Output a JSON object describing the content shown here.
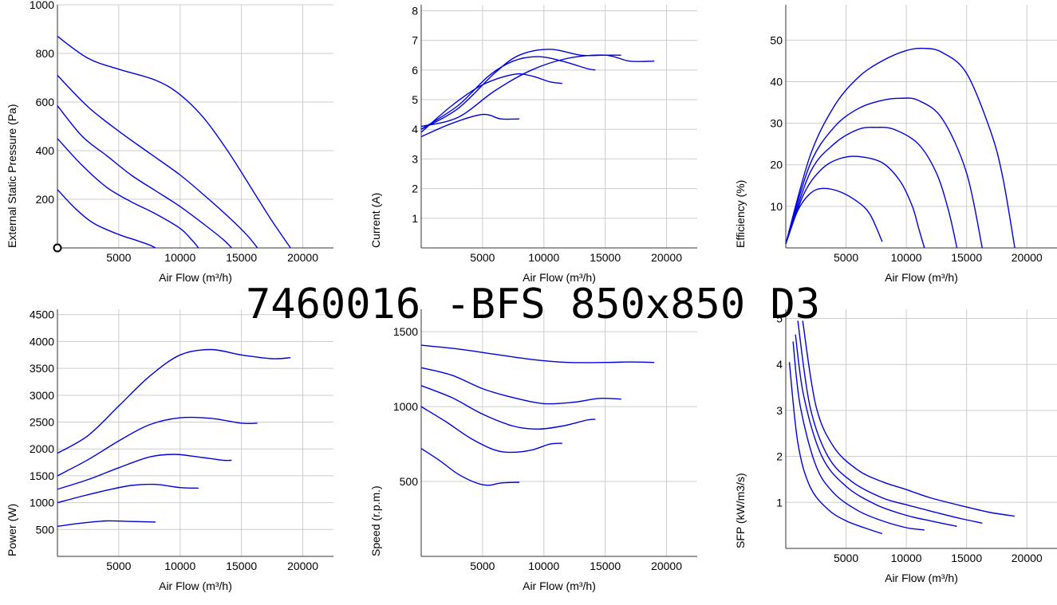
{
  "page_title": "7460016 -BFS 850x850 D3",
  "colors": {
    "curve": "#0000dd",
    "grid": "#cccccc",
    "axis": "#333333",
    "text": "#000000"
  },
  "chart_data": [
    {
      "id": "pressure",
      "type": "line",
      "xlabel": "Air Flow (m³/h)",
      "ylabel": "External Static Pressure (Pa)",
      "xlim": [
        0,
        22500
      ],
      "ylim": [
        0,
        1000
      ],
      "xticks": [
        5000,
        10000,
        15000,
        20000
      ],
      "yticks": [
        200,
        400,
        600,
        800,
        1000
      ],
      "grid": true,
      "marker": {
        "x": 0,
        "y": 0
      },
      "series": [
        {
          "x": [
            0,
            2500,
            5000,
            8000,
            10000,
            12000,
            14000,
            16000,
            17500,
            19000
          ],
          "y": [
            870,
            780,
            735,
            690,
            630,
            530,
            390,
            230,
            110,
            0
          ]
        },
        {
          "x": [
            0,
            2500,
            5000,
            7500,
            10000,
            12000,
            14000,
            15500,
            16300
          ],
          "y": [
            710,
            580,
            480,
            390,
            300,
            215,
            125,
            50,
            0
          ]
        },
        {
          "x": [
            0,
            2000,
            4000,
            6000,
            8000,
            10000,
            12000,
            13500,
            14200
          ],
          "y": [
            585,
            460,
            380,
            300,
            235,
            170,
            95,
            35,
            0
          ]
        },
        {
          "x": [
            0,
            2000,
            4000,
            6000,
            8000,
            10000,
            11000,
            11500
          ],
          "y": [
            450,
            340,
            250,
            190,
            140,
            80,
            30,
            0
          ]
        },
        {
          "x": [
            0,
            1500,
            3000,
            5000,
            6500,
            7500,
            8000
          ],
          "y": [
            240,
            160,
            100,
            55,
            30,
            12,
            0
          ]
        }
      ]
    },
    {
      "id": "current",
      "type": "line",
      "xlabel": "Air Flow (m³/h)",
      "ylabel": "Current (A)",
      "xlim": [
        0,
        22500
      ],
      "ylim": [
        0,
        8.2
      ],
      "xticks": [
        5000,
        10000,
        15000,
        20000
      ],
      "yticks": [
        1,
        2,
        3,
        4,
        5,
        6,
        7,
        8
      ],
      "grid": true,
      "series": [
        {
          "x": [
            0,
            3000,
            6000,
            9000,
            12000,
            15000,
            17000,
            19000
          ],
          "y": [
            4.1,
            4.4,
            5.3,
            6.0,
            6.4,
            6.5,
            6.3,
            6.3
          ]
        },
        {
          "x": [
            0,
            3000,
            6000,
            8000,
            10500,
            13000,
            15000,
            16300
          ],
          "y": [
            4.0,
            4.7,
            5.9,
            6.5,
            6.7,
            6.5,
            6.5,
            6.5
          ]
        },
        {
          "x": [
            0,
            3000,
            5500,
            7500,
            9500,
            11500,
            13500,
            14200
          ],
          "y": [
            4.0,
            4.8,
            5.8,
            6.3,
            6.45,
            6.3,
            6.05,
            6.0
          ]
        },
        {
          "x": [
            0,
            2500,
            5000,
            7500,
            9000,
            10500,
            11500
          ],
          "y": [
            3.9,
            4.8,
            5.5,
            5.85,
            5.8,
            5.6,
            5.55
          ]
        },
        {
          "x": [
            0,
            2500,
            5000,
            6500,
            8000
          ],
          "y": [
            3.75,
            4.2,
            4.5,
            4.35,
            4.35
          ]
        }
      ]
    },
    {
      "id": "efficiency",
      "type": "line",
      "xlabel": "Air Flow (m³/h)",
      "ylabel": "Efficiency (%)",
      "xlim": [
        0,
        22500
      ],
      "ylim": [
        0,
        58.5
      ],
      "xticks": [
        5000,
        10000,
        15000,
        20000
      ],
      "yticks": [
        10,
        20,
        30,
        40,
        50
      ],
      "grid": true,
      "series": [
        {
          "x": [
            0,
            2000,
            4000,
            6000,
            8000,
            10000,
            11500,
            13000,
            15000,
            17000,
            18000,
            19000
          ],
          "y": [
            1,
            22,
            34,
            41,
            45,
            47.5,
            48,
            47,
            42,
            28,
            17,
            0
          ]
        },
        {
          "x": [
            0,
            2000,
            4000,
            6000,
            8000,
            9500,
            11000,
            13000,
            15000,
            16300
          ],
          "y": [
            1,
            20,
            29,
            33.5,
            35.5,
            36,
            35.5,
            31,
            18,
            0
          ]
        },
        {
          "x": [
            0,
            2000,
            4000,
            6000,
            7500,
            9000,
            11000,
            12500,
            13500,
            14200
          ],
          "y": [
            1,
            18,
            25,
            28.5,
            29,
            28.5,
            25,
            18,
            9,
            0
          ]
        },
        {
          "x": [
            0,
            1500,
            3000,
            4500,
            6000,
            8000,
            9500,
            10500,
            11000,
            11500
          ],
          "y": [
            1,
            13,
            19,
            21.5,
            22,
            20.5,
            16,
            10,
            5,
            0
          ]
        },
        {
          "x": [
            0,
            1000,
            2000,
            3000,
            4500,
            6000,
            7000,
            8000
          ],
          "y": [
            1,
            9,
            13,
            14.3,
            13.5,
            11,
            8,
            1.5
          ]
        }
      ]
    },
    {
      "id": "power",
      "type": "line",
      "xlabel": "Air Flow (m³/h)",
      "ylabel": "Power (W)",
      "xlim": [
        0,
        22500
      ],
      "ylim": [
        0,
        4600
      ],
      "xticks": [
        5000,
        10000,
        15000,
        20000
      ],
      "yticks": [
        500,
        1000,
        1500,
        2000,
        2500,
        3000,
        3500,
        4000,
        4500
      ],
      "grid": true,
      "series": [
        {
          "x": [
            0,
            2500,
            5000,
            7500,
            10000,
            12500,
            15000,
            17500,
            19000
          ],
          "y": [
            1920,
            2250,
            2800,
            3350,
            3750,
            3850,
            3750,
            3680,
            3700
          ]
        },
        {
          "x": [
            0,
            2500,
            5000,
            7500,
            10000,
            12500,
            15000,
            16300
          ],
          "y": [
            1500,
            1800,
            2150,
            2450,
            2580,
            2570,
            2480,
            2480
          ]
        },
        {
          "x": [
            0,
            2500,
            5000,
            7500,
            9500,
            11500,
            13500,
            14200
          ],
          "y": [
            1250,
            1430,
            1650,
            1850,
            1900,
            1850,
            1790,
            1790
          ]
        },
        {
          "x": [
            0,
            2000,
            4000,
            6000,
            8000,
            10000,
            11500
          ],
          "y": [
            1000,
            1120,
            1230,
            1320,
            1340,
            1280,
            1270
          ]
        },
        {
          "x": [
            0,
            2000,
            4000,
            6000,
            8000
          ],
          "y": [
            560,
            620,
            660,
            650,
            640
          ]
        }
      ]
    },
    {
      "id": "speed",
      "type": "line",
      "xlabel": "Air Flow (m³/h)",
      "ylabel": "Speed (r.p.m.)",
      "xlim": [
        0,
        22500
      ],
      "ylim": [
        0,
        1650
      ],
      "xticks": [
        5000,
        10000,
        15000,
        20000
      ],
      "yticks": [
        500,
        1000,
        1500
      ],
      "grid": true,
      "series": [
        {
          "x": [
            0,
            3000,
            6000,
            9000,
            12000,
            15000,
            17000,
            19000
          ],
          "y": [
            1410,
            1385,
            1350,
            1315,
            1295,
            1295,
            1298,
            1295
          ]
        },
        {
          "x": [
            0,
            2500,
            5000,
            7500,
            10000,
            12500,
            14500,
            16300
          ],
          "y": [
            1260,
            1210,
            1120,
            1060,
            1020,
            1030,
            1055,
            1050
          ]
        },
        {
          "x": [
            0,
            2500,
            5000,
            7500,
            9500,
            11500,
            13500,
            14200
          ],
          "y": [
            1140,
            1060,
            950,
            870,
            850,
            870,
            910,
            915
          ]
        },
        {
          "x": [
            0,
            2000,
            4000,
            6000,
            7500,
            9000,
            10500,
            11500
          ],
          "y": [
            1000,
            900,
            790,
            710,
            695,
            710,
            750,
            755
          ]
        },
        {
          "x": [
            0,
            1500,
            3000,
            4500,
            5500,
            6500,
            8000
          ],
          "y": [
            720,
            640,
            550,
            490,
            475,
            490,
            495
          ]
        }
      ]
    },
    {
      "id": "sfp",
      "type": "line",
      "xlabel": "Air Flow (m³/h)",
      "ylabel": "SFP (kW/m3/s)",
      "xlim": [
        0,
        22500
      ],
      "ylim": [
        0,
        5.2
      ],
      "xticks": [
        5000,
        10000,
        15000,
        20000
      ],
      "yticks": [
        1,
        2,
        3,
        4,
        5
      ],
      "grid": true,
      "series": [
        {
          "x": [
            1400,
            2500,
            4000,
            6000,
            8000,
            10000,
            12000,
            15000,
            17000,
            19000
          ],
          "y": [
            4.95,
            3.1,
            2.2,
            1.7,
            1.45,
            1.28,
            1.1,
            0.9,
            0.78,
            0.7
          ]
        },
        {
          "x": [
            1000,
            2000,
            3500,
            5500,
            8000,
            10000,
            12500,
            14500,
            16300
          ],
          "y": [
            4.95,
            3.1,
            2.0,
            1.45,
            1.1,
            0.95,
            0.78,
            0.65,
            0.55
          ]
        },
        {
          "x": [
            800,
            1500,
            3000,
            5000,
            7500,
            10000,
            12000,
            14200
          ],
          "y": [
            4.65,
            3.3,
            2.0,
            1.35,
            0.95,
            0.72,
            0.6,
            0.48
          ]
        },
        {
          "x": [
            600,
            1200,
            2500,
            4000,
            6000,
            8000,
            10000,
            11500
          ],
          "y": [
            4.5,
            3.1,
            1.8,
            1.2,
            0.82,
            0.6,
            0.45,
            0.4
          ]
        },
        {
          "x": [
            300,
            1000,
            2000,
            3500,
            5000,
            6500,
            8000
          ],
          "y": [
            4.05,
            2.3,
            1.35,
            0.85,
            0.6,
            0.45,
            0.32
          ]
        }
      ]
    }
  ]
}
